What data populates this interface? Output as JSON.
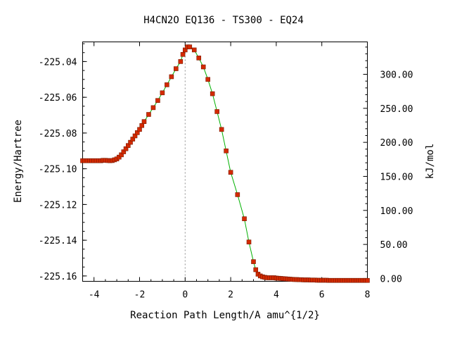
{
  "chart_data": {
    "type": "line",
    "title": "H4CN2O   EQ136 - TS300 - EQ24",
    "xlabel": "Reaction Path Length/A amu^{1/2}",
    "ylabel": "Energy/Hartree",
    "y2label": "kJ/mol",
    "xlim": [
      -4.5,
      8
    ],
    "ylim": [
      -225.163,
      -225.029
    ],
    "y2lim": [
      -4.2,
      347.6
    ],
    "xticks": [
      -4,
      -2,
      0,
      2,
      4,
      6,
      8
    ],
    "xtick_labels": [
      "-4",
      "-2",
      "0",
      "2",
      "4",
      "6",
      "8"
    ],
    "yticks": [
      -225.04,
      -225.06,
      -225.08,
      -225.1,
      -225.12,
      -225.14,
      -225.16
    ],
    "ytick_labels": [
      "-225.04",
      "-225.06",
      "-225.08",
      "-225.10",
      "-225.12",
      "-225.14",
      "-225.16"
    ],
    "y2ticks": [
      0,
      50,
      100,
      150,
      200,
      250,
      300
    ],
    "y2tick_labels": [
      "0.00",
      "50.00",
      "100.00",
      "150.00",
      "200.00",
      "250.00",
      "300.00"
    ],
    "ts_marker_x": 0,
    "colors": {
      "line": "#00b000",
      "marker": "#d42a00",
      "marker_edge": "#7a1a00",
      "ts_line": "#909090"
    },
    "series": [
      {
        "x": [
          -4.5,
          -4.4,
          -4.3,
          -4.2,
          -4.1,
          -4.0,
          -3.9,
          -3.8,
          -3.7,
          -3.6,
          -3.5,
          -3.4,
          -3.3,
          -3.2,
          -3.1,
          -3.0,
          -2.9,
          -2.8,
          -2.7,
          -2.6,
          -2.5,
          -2.4,
          -2.3,
          -2.2,
          -2.1,
          -2.0,
          -1.9,
          -1.8,
          -1.6,
          -1.4,
          -1.2,
          -1.0,
          -0.8,
          -0.6,
          -0.4,
          -0.2,
          -0.1,
          0.0,
          0.1,
          0.2,
          0.4,
          0.6,
          0.8,
          1.0,
          1.2,
          1.4,
          1.6,
          1.8,
          2.0,
          2.3,
          2.6,
          2.8,
          3.0,
          3.1,
          3.2,
          3.3,
          3.4,
          3.5,
          3.6,
          3.7,
          3.8,
          3.9,
          4.0,
          4.1,
          4.2,
          4.3,
          4.4,
          4.5,
          4.6,
          4.7,
          4.8,
          4.9,
          5.0,
          5.1,
          5.2,
          5.3,
          5.4,
          5.5,
          5.6,
          5.7,
          5.8,
          5.9,
          6.0,
          6.1,
          6.2,
          6.3,
          6.4,
          6.5,
          6.6,
          6.7,
          6.8,
          6.9,
          7.0,
          7.1,
          7.2,
          7.3,
          7.4,
          7.5,
          7.6,
          7.7,
          7.8,
          7.9,
          8.0
        ],
        "y": [
          -225.0955,
          -225.0955,
          -225.0955,
          -225.0955,
          -225.0955,
          -225.0955,
          -225.0955,
          -225.0955,
          -225.0955,
          -225.0953,
          -225.0953,
          -225.0954,
          -225.0955,
          -225.0954,
          -225.095,
          -225.0945,
          -225.0935,
          -225.0922,
          -225.0905,
          -225.0888,
          -225.087,
          -225.0852,
          -225.0834,
          -225.0816,
          -225.0798,
          -225.078,
          -225.0758,
          -225.0736,
          -225.0696,
          -225.0658,
          -225.0618,
          -225.0575,
          -225.053,
          -225.0485,
          -225.044,
          -225.04,
          -225.036,
          -225.0335,
          -225.0318,
          -225.0318,
          -225.0335,
          -225.038,
          -225.043,
          -225.05,
          -225.058,
          -225.068,
          -225.078,
          -225.09,
          -225.102,
          -225.1145,
          -225.128,
          -225.141,
          -225.152,
          -225.1565,
          -225.159,
          -225.16,
          -225.1605,
          -225.1608,
          -225.161,
          -225.161,
          -225.161,
          -225.161,
          -225.1612,
          -225.1613,
          -225.1614,
          -225.1615,
          -225.1616,
          -225.1617,
          -225.1618,
          -225.1619,
          -225.162,
          -225.162,
          -225.1621,
          -225.1621,
          -225.1622,
          -225.1622,
          -225.1622,
          -225.1623,
          -225.1623,
          -225.1623,
          -225.1624,
          -225.1624,
          -225.1624,
          -225.1624,
          -225.1624,
          -225.1625,
          -225.1625,
          -225.1625,
          -225.1625,
          -225.1625,
          -225.1625,
          -225.1625,
          -225.1625,
          -225.1625,
          -225.1625,
          -225.1625,
          -225.1625,
          -225.1625,
          -225.1625,
          -225.1625,
          -225.1625,
          -225.1625,
          -225.1625
        ]
      }
    ]
  }
}
